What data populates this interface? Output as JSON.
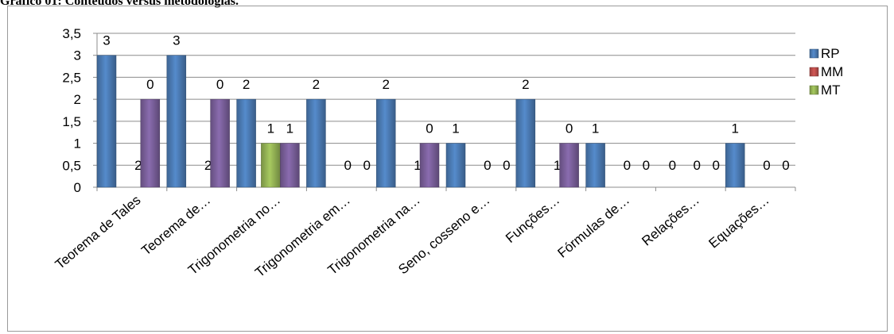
{
  "caption": "Gráfico 01: Conteúdos versus metodologias.",
  "chart_data": {
    "type": "bar",
    "title": "",
    "xlabel": "",
    "ylabel": "",
    "ylim": [
      0,
      3.5
    ],
    "ytick_step": 0.5,
    "yticks": [
      "0",
      "0,5",
      "1",
      "1,5",
      "2",
      "2,5",
      "3",
      "3,5"
    ],
    "grid": true,
    "legend_position": "right",
    "categories": [
      "Teorema de Tales",
      "Teorema de…",
      "Trigonometria no…",
      "Trigonometria em…",
      "Trigonometria na…",
      "Seno, cosseno e…",
      "Funções…",
      "Fórmulas de…",
      "Relações…",
      "Equações…"
    ],
    "series": [
      {
        "name": "RP",
        "color": "#4f81bd",
        "values": [
          3,
          3,
          2,
          2,
          2,
          1,
          2,
          1,
          0,
          1
        ]
      },
      {
        "name": "MM",
        "color": "#8064a2",
        "legend_color": "#c0504d",
        "values": [
          2,
          2,
          1,
          0,
          1,
          0,
          1,
          0,
          0,
          0
        ]
      },
      {
        "name": "MT",
        "color": "#9bbb59",
        "values": [
          0,
          0,
          1,
          0,
          0,
          0,
          0,
          0,
          0,
          0
        ]
      }
    ],
    "data_labels": [
      [
        "3",
        "0",
        "2"
      ],
      [
        "3",
        "0",
        "2"
      ],
      [
        "2",
        "1",
        "1"
      ],
      [
        "2",
        "0",
        "0"
      ],
      [
        "2",
        "0",
        "1"
      ],
      [
        "1",
        "0",
        "0"
      ],
      [
        "2",
        "0",
        "1"
      ],
      [
        "1",
        "0",
        "0"
      ],
      [
        "0",
        "0",
        "0"
      ],
      [
        "1",
        "0",
        "0"
      ]
    ]
  }
}
